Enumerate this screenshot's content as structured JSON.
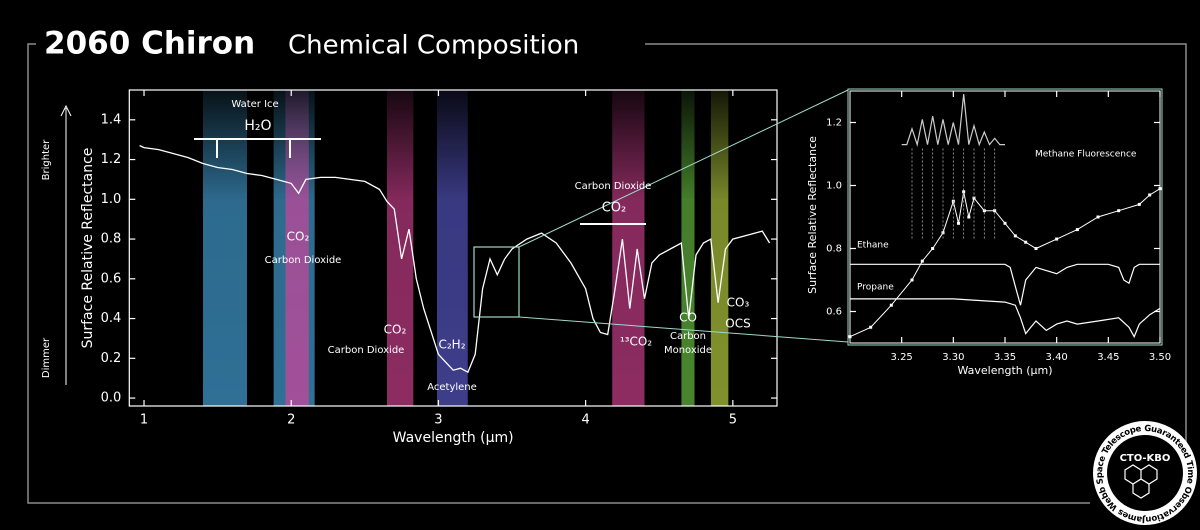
{
  "header": {
    "title": "2060 Chiron",
    "subtitle": "Chemical Composition"
  },
  "badge": {
    "name": "CTO-KBO",
    "ring": "James Webb Space Telescope Guaranteed Time Observations"
  },
  "chart_data": [
    {
      "type": "line",
      "xlabel": "Wavelength (µm)",
      "ylabel": "Surface Relative Reflectance",
      "y_high_label": "Brighter",
      "y_low_label": "Dimmer",
      "color": "#ffffff",
      "xlim": [
        0.9,
        5.3
      ],
      "ylim": [
        -0.04,
        1.55
      ],
      "xticks": [
        1,
        2,
        3,
        4,
        5
      ],
      "yticks": [
        {
          "value": 0,
          "label": "0.0"
        },
        0.2,
        0.4,
        0.6,
        0.8,
        {
          "value": 1,
          "label": "1.0"
        },
        1.2,
        1.4
      ],
      "x": [
        0.97,
        1.0,
        1.1,
        1.2,
        1.3,
        1.4,
        1.5,
        1.6,
        1.7,
        1.8,
        1.9,
        2.0,
        2.05,
        2.1,
        2.2,
        2.3,
        2.4,
        2.5,
        2.6,
        2.65,
        2.7,
        2.75,
        2.8,
        2.85,
        2.9,
        3.0,
        3.05,
        3.1,
        3.15,
        3.2,
        3.25,
        3.3,
        3.35,
        3.4,
        3.45,
        3.5,
        3.6,
        3.7,
        3.8,
        3.9,
        4.0,
        4.05,
        4.1,
        4.15,
        4.2,
        4.25,
        4.3,
        4.35,
        4.4,
        4.45,
        4.5,
        4.6,
        4.65,
        4.7,
        4.75,
        4.8,
        4.85,
        4.9,
        4.95,
        5.0,
        5.1,
        5.2,
        5.25
      ],
      "values": [
        1.27,
        1.26,
        1.25,
        1.23,
        1.21,
        1.18,
        1.16,
        1.15,
        1.13,
        1.12,
        1.1,
        1.08,
        1.03,
        1.1,
        1.11,
        1.11,
        1.1,
        1.09,
        1.05,
        0.99,
        0.95,
        0.7,
        0.85,
        0.6,
        0.45,
        0.22,
        0.18,
        0.14,
        0.15,
        0.13,
        0.22,
        0.55,
        0.7,
        0.62,
        0.7,
        0.75,
        0.8,
        0.83,
        0.78,
        0.68,
        0.55,
        0.4,
        0.33,
        0.32,
        0.55,
        0.8,
        0.45,
        0.75,
        0.5,
        0.68,
        0.72,
        0.76,
        0.78,
        0.4,
        0.72,
        0.78,
        0.8,
        0.48,
        0.75,
        0.8,
        0.82,
        0.84,
        0.78
      ],
      "bands": [
        {
          "x": [
            1.4,
            1.7
          ],
          "color": "#3f93c4"
        },
        {
          "x": [
            1.88,
            2.16
          ],
          "color": "#3f93c4"
        },
        {
          "x": [
            1.96,
            2.12
          ],
          "color": "#c4479a"
        },
        {
          "x": [
            2.65,
            2.83
          ],
          "color": "#b83a80"
        },
        {
          "x": [
            2.99,
            3.2
          ],
          "color": "#5050b4"
        },
        {
          "x": [
            4.18,
            4.4
          ],
          "color": "#b83a80"
        },
        {
          "x": [
            4.65,
            4.74
          ],
          "color": "#5fae3c"
        },
        {
          "x": [
            4.85,
            4.97
          ],
          "color": "#a8bd3a"
        }
      ],
      "annotations": [
        "Water Ice",
        "H₂O",
        "CO₂",
        "Carbon Dioxide",
        "CO₂",
        "Carbon Dioxide",
        "C₂H₂",
        "Acetylene",
        "Carbon Dioxide",
        "CO₂",
        "¹³CO₂",
        "CO",
        "Carbon",
        "Monoxide",
        "CO₃",
        "OCS"
      ]
    },
    {
      "type": "line",
      "xlabel": "Wavelength (µm)",
      "ylabel": "Surface Relative Reflectance",
      "xlim": [
        3.2,
        3.5
      ],
      "ylim": [
        0.5,
        1.3
      ],
      "xticks": [
        3.25,
        {
          "value": 3.3,
          "label": "3.30"
        },
        3.35,
        {
          "value": 3.4,
          "label": "3.40"
        },
        3.45,
        {
          "value": 3.5,
          "label": "3.50"
        }
      ],
      "yticks": [
        0.6,
        0.8,
        {
          "value": 1,
          "label": "1.0"
        },
        1.2
      ],
      "series": [
        {
          "color": "#ffffff",
          "x": [
            3.2,
            3.22,
            3.24,
            3.26,
            3.27,
            3.28,
            3.29,
            3.3,
            3.305,
            3.31,
            3.315,
            3.32,
            3.33,
            3.34,
            3.35,
            3.36,
            3.37,
            3.38,
            3.4,
            3.42,
            3.44,
            3.46,
            3.48,
            3.49,
            3.5
          ],
          "values": [
            0.52,
            0.55,
            0.62,
            0.7,
            0.76,
            0.8,
            0.85,
            0.95,
            0.88,
            0.98,
            0.9,
            0.96,
            0.92,
            0.92,
            0.88,
            0.84,
            0.82,
            0.8,
            0.83,
            0.86,
            0.9,
            0.92,
            0.94,
            0.97,
            0.99
          ]
        },
        {
          "name": "Ethane",
          "color": "#ffffff",
          "x": [
            3.2,
            3.3,
            3.35,
            3.355,
            3.36,
            3.365,
            3.37,
            3.38,
            3.39,
            3.4,
            3.41,
            3.42,
            3.45,
            3.46,
            3.465,
            3.47,
            3.475,
            3.48,
            3.5
          ],
          "values": [
            0.75,
            0.75,
            0.75,
            0.74,
            0.68,
            0.62,
            0.7,
            0.74,
            0.73,
            0.72,
            0.74,
            0.75,
            0.75,
            0.74,
            0.7,
            0.69,
            0.74,
            0.75,
            0.75
          ]
        },
        {
          "name": "Propane",
          "color": "#ffffff",
          "x": [
            3.2,
            3.3,
            3.35,
            3.36,
            3.365,
            3.37,
            3.375,
            3.38,
            3.39,
            3.4,
            3.41,
            3.42,
            3.44,
            3.46,
            3.47,
            3.475,
            3.48,
            3.49,
            3.5
          ],
          "values": [
            0.64,
            0.64,
            0.63,
            0.62,
            0.58,
            0.53,
            0.55,
            0.57,
            0.54,
            0.56,
            0.57,
            0.56,
            0.57,
            0.58,
            0.55,
            0.52,
            0.56,
            0.59,
            0.61
          ]
        },
        {
          "name": "Methane Fluorescence",
          "color": "#cccccc",
          "x": [
            3.25,
            3.255,
            3.26,
            3.265,
            3.27,
            3.275,
            3.28,
            3.285,
            3.29,
            3.295,
            3.3,
            3.305,
            3.31,
            3.315,
            3.32,
            3.325,
            3.33,
            3.335,
            3.34,
            3.345,
            3.35
          ],
          "values": [
            1.13,
            1.13,
            1.18,
            1.13,
            1.21,
            1.13,
            1.22,
            1.13,
            1.21,
            1.13,
            1.2,
            1.13,
            1.29,
            1.13,
            1.19,
            1.13,
            1.17,
            1.13,
            1.15,
            1.13,
            1.13
          ]
        }
      ]
    }
  ]
}
